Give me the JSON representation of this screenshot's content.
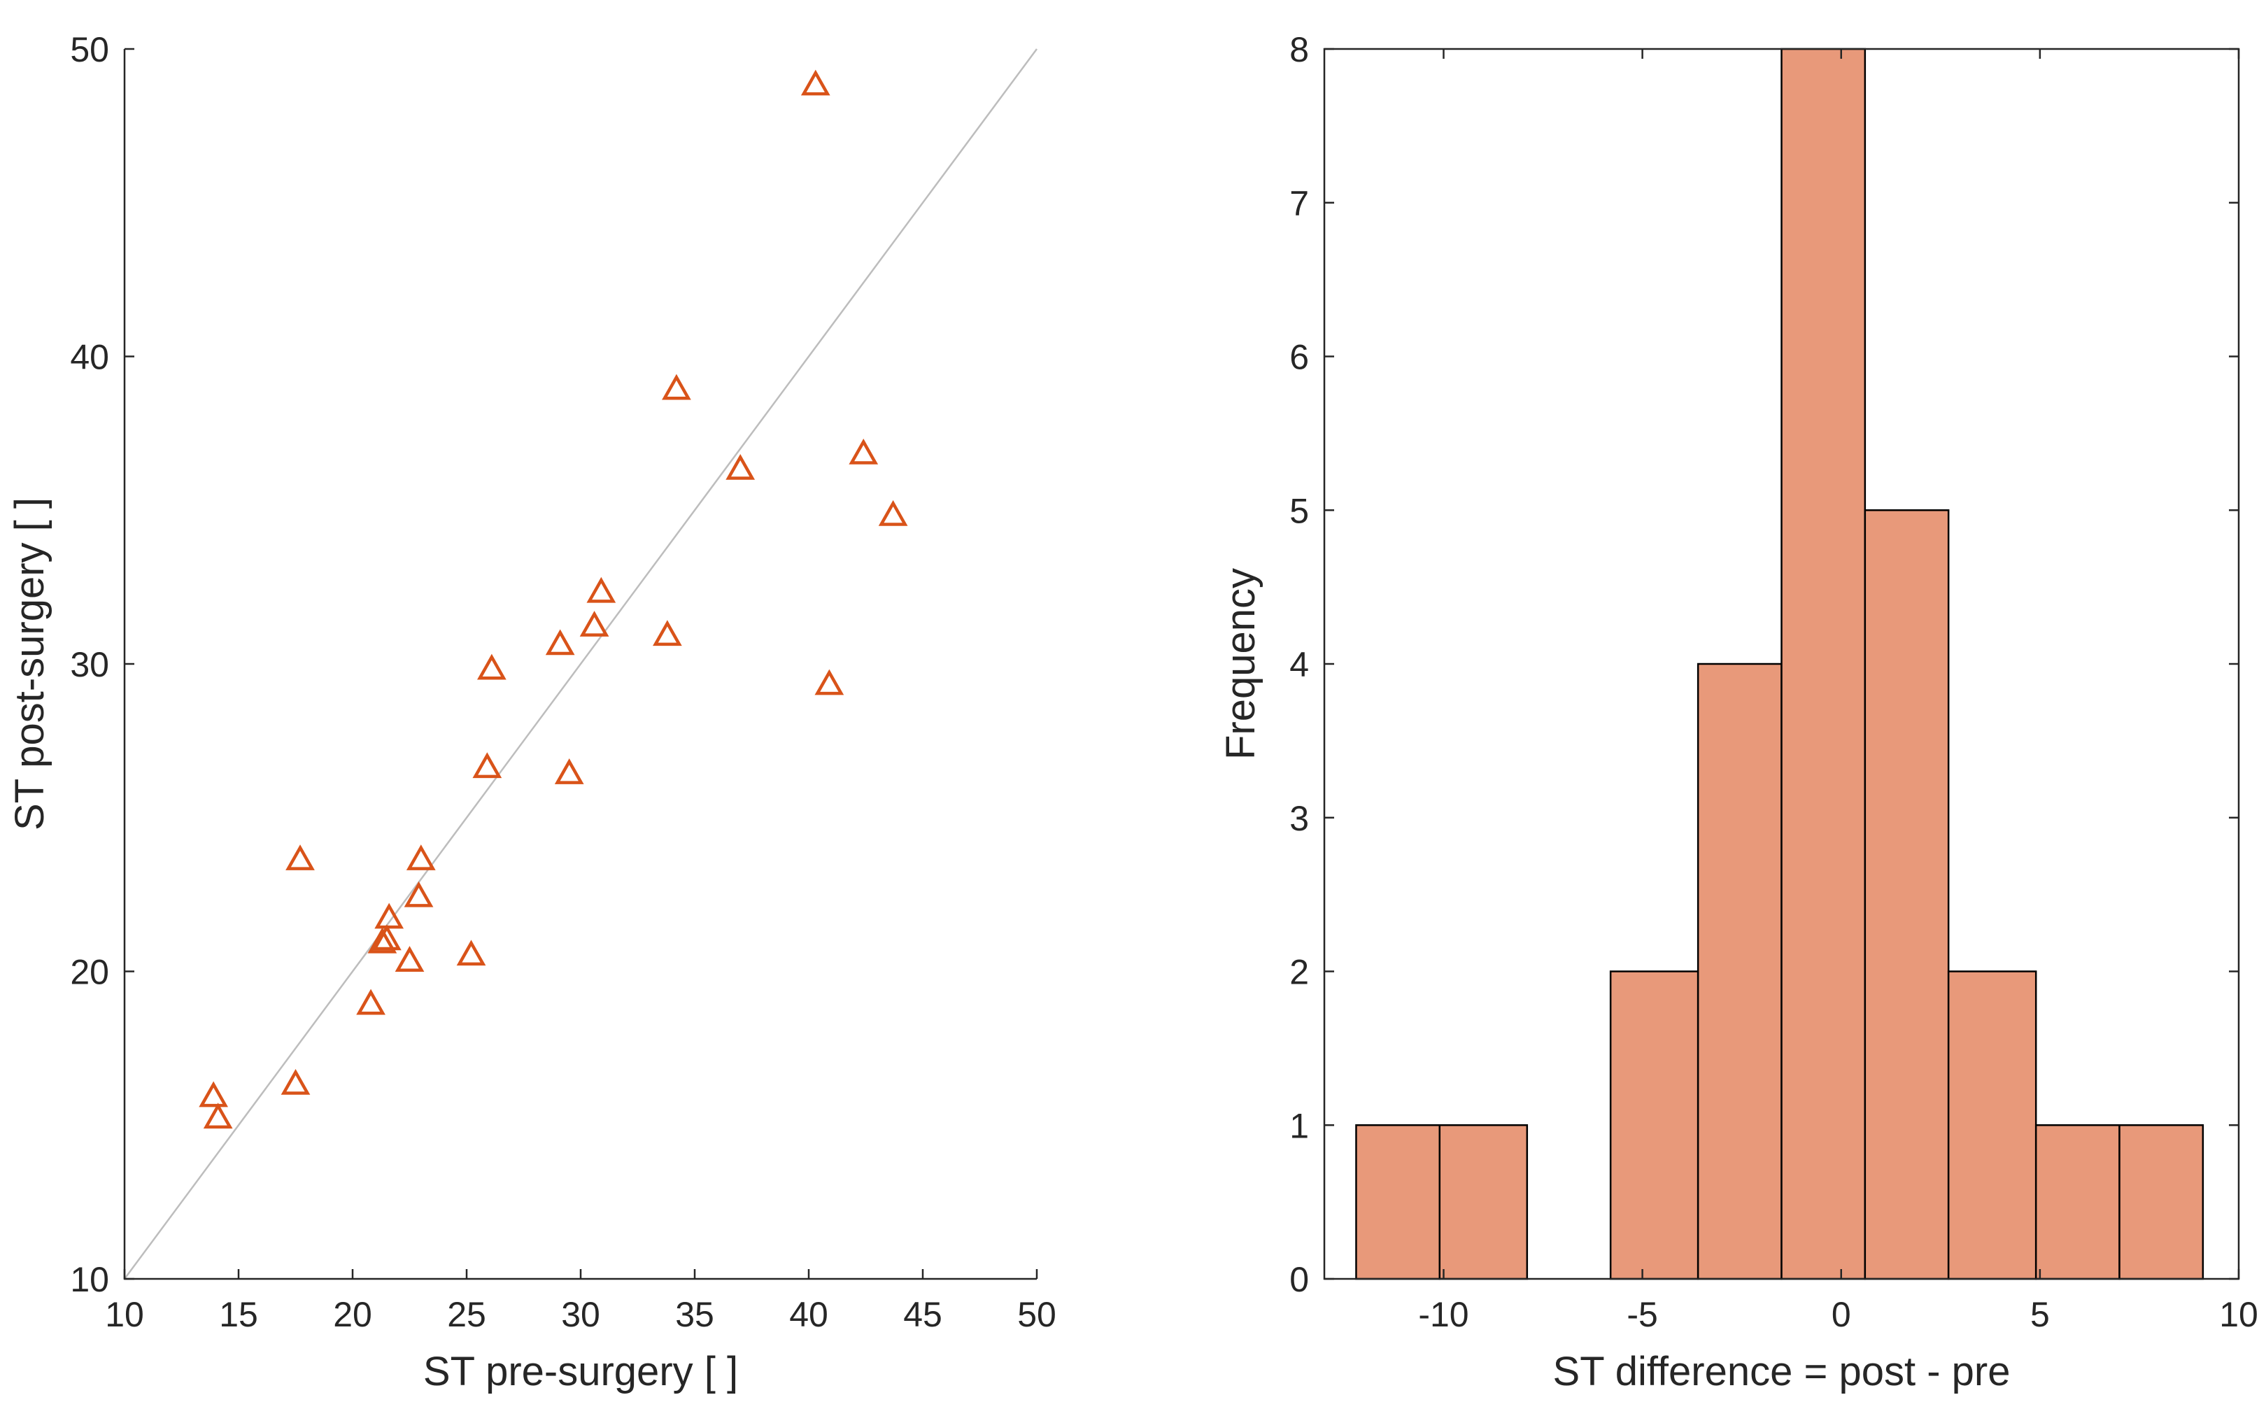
{
  "chart_data": [
    {
      "type": "scatter",
      "xlabel": "ST pre-surgery [ ]",
      "ylabel": "ST post-surgery [ ]",
      "xlim": [
        10,
        50
      ],
      "ylim": [
        10,
        50
      ],
      "xticks": [
        10,
        15,
        20,
        25,
        30,
        35,
        40,
        45,
        50
      ],
      "yticks": [
        10,
        20,
        30,
        40,
        50
      ],
      "grid": false,
      "reference_line": {
        "from": [
          10,
          10
        ],
        "to": [
          50,
          50
        ],
        "color": "#bdbdbd"
      },
      "marker": "triangle",
      "marker_color": "#d95319",
      "points": [
        {
          "x": 13.9,
          "y": 15.9
        },
        {
          "x": 14.1,
          "y": 15.2
        },
        {
          "x": 17.5,
          "y": 16.3
        },
        {
          "x": 17.7,
          "y": 23.6
        },
        {
          "x": 20.8,
          "y": 18.9
        },
        {
          "x": 21.3,
          "y": 20.9
        },
        {
          "x": 21.5,
          "y": 21.0
        },
        {
          "x": 21.6,
          "y": 21.7
        },
        {
          "x": 22.5,
          "y": 20.3
        },
        {
          "x": 22.9,
          "y": 22.4
        },
        {
          "x": 23.0,
          "y": 23.6
        },
        {
          "x": 25.2,
          "y": 20.5
        },
        {
          "x": 25.9,
          "y": 26.6
        },
        {
          "x": 26.1,
          "y": 29.8
        },
        {
          "x": 29.1,
          "y": 30.6
        },
        {
          "x": 29.5,
          "y": 26.4
        },
        {
          "x": 30.6,
          "y": 31.2
        },
        {
          "x": 30.9,
          "y": 32.3
        },
        {
          "x": 33.8,
          "y": 30.9
        },
        {
          "x": 34.2,
          "y": 38.9
        },
        {
          "x": 37.0,
          "y": 36.3
        },
        {
          "x": 40.3,
          "y": 48.8
        },
        {
          "x": 40.9,
          "y": 29.3
        },
        {
          "x": 42.4,
          "y": 36.8
        },
        {
          "x": 43.7,
          "y": 34.8
        }
      ]
    },
    {
      "type": "bar",
      "subtype": "histogram",
      "xlabel": "ST difference = post - pre",
      "ylabel": "Frequency",
      "xlim": [
        -13,
        10
      ],
      "ylim": [
        0,
        8
      ],
      "xticks": [
        -10,
        -5,
        0,
        5,
        10
      ],
      "yticks": [
        0,
        1,
        2,
        3,
        4,
        5,
        6,
        7,
        8
      ],
      "grid": false,
      "bar_color": "#e8997a",
      "bins": [
        {
          "from": -12.2,
          "to": -10.1,
          "count": 1
        },
        {
          "from": -10.1,
          "to": -7.9,
          "count": 1
        },
        {
          "from": -7.9,
          "to": -5.8,
          "count": 0
        },
        {
          "from": -5.8,
          "to": -3.6,
          "count": 2
        },
        {
          "from": -3.6,
          "to": -1.5,
          "count": 4
        },
        {
          "from": -1.5,
          "to": 0.6,
          "count": 8
        },
        {
          "from": 0.6,
          "to": 2.7,
          "count": 5
        },
        {
          "from": 2.7,
          "to": 4.9,
          "count": 2
        },
        {
          "from": 4.9,
          "to": 7.0,
          "count": 1
        },
        {
          "from": 7.0,
          "to": 9.1,
          "count": 1
        }
      ]
    }
  ]
}
